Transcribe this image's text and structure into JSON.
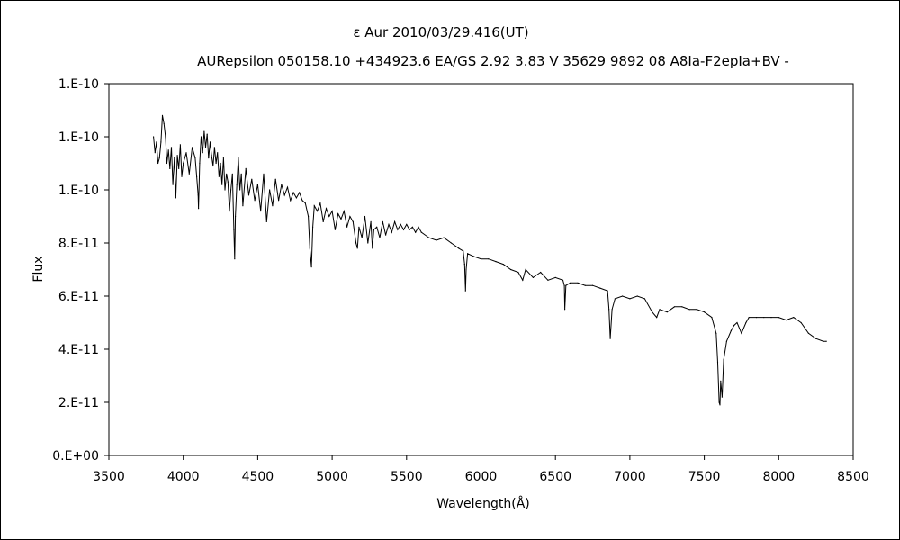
{
  "chart_data": {
    "type": "line",
    "title": "ε  Aur   2010/03/29.416(UT)",
    "subtitle": "AURepsilon 050158.10 +434923.6 EA/GS 2.92 3.83 V 35629 9892 08 A8Ⅰa-F2epⅠa+BV -",
    "xlabel": "Wavelength(Å)",
    "ylabel": "Flux",
    "xlim": [
      3500,
      8500
    ],
    "ylim": [
      0,
      1.4e-10
    ],
    "x_ticks": [
      3500,
      4000,
      4500,
      5000,
      5500,
      6000,
      6500,
      7000,
      7500,
      8000,
      8500
    ],
    "x_tick_labels": [
      "3500",
      "4000",
      "4500",
      "5000",
      "5500",
      "6000",
      "6500",
      "7000",
      "7500",
      "8000",
      "8500"
    ],
    "y_ticks": [
      0,
      2e-11,
      4e-11,
      6e-11,
      8e-11,
      1e-10,
      1.2e-10,
      1.4e-10
    ],
    "y_tick_labels": [
      "0.E+00",
      "2.E-11",
      "4.E-11",
      "6.E-11",
      "8.E-11",
      "1.E-10",
      "1.E-10",
      "1.E-10"
    ],
    "grid": false,
    "legend": "none",
    "line_color": "#000000",
    "series": [
      {
        "x": [
          3800,
          3810,
          3820,
          3830,
          3840,
          3850,
          3860,
          3870,
          3880,
          3890,
          3900,
          3910,
          3920,
          3930,
          3940,
          3950,
          3960,
          3970,
          3980,
          3990,
          4000,
          4020,
          4040,
          4060,
          4080,
          4090,
          4100,
          4102,
          4110,
          4120,
          4130,
          4140,
          4150,
          4160,
          4170,
          4180,
          4190,
          4200,
          4210,
          4220,
          4230,
          4240,
          4250,
          4260,
          4270,
          4280,
          4290,
          4300,
          4310,
          4320,
          4330,
          4340,
          4345,
          4350,
          4360,
          4370,
          4380,
          4390,
          4400,
          4420,
          4440,
          4460,
          4480,
          4500,
          4520,
          4540,
          4560,
          4580,
          4600,
          4620,
          4640,
          4660,
          4680,
          4700,
          4720,
          4740,
          4760,
          4780,
          4800,
          4820,
          4840,
          4850,
          4861,
          4870,
          4880,
          4900,
          4920,
          4940,
          4960,
          4980,
          5000,
          5020,
          5040,
          5060,
          5080,
          5100,
          5120,
          5140,
          5160,
          5170,
          5180,
          5200,
          5220,
          5240,
          5260,
          5270,
          5280,
          5300,
          5320,
          5340,
          5360,
          5380,
          5400,
          5420,
          5440,
          5460,
          5480,
          5500,
          5520,
          5540,
          5560,
          5580,
          5600,
          5650,
          5700,
          5750,
          5800,
          5850,
          5880,
          5890,
          5896,
          5900,
          5910,
          5950,
          6000,
          6050,
          6100,
          6150,
          6200,
          6250,
          6280,
          6300,
          6350,
          6400,
          6450,
          6500,
          6550,
          6560,
          6563,
          6570,
          6600,
          6650,
          6700,
          6750,
          6800,
          6850,
          6860,
          6868,
          6880,
          6900,
          6950,
          7000,
          7050,
          7100,
          7150,
          7180,
          7200,
          7250,
          7300,
          7350,
          7400,
          7450,
          7500,
          7550,
          7580,
          7590,
          7600,
          7605,
          7610,
          7620,
          7630,
          7650,
          7680,
          7700,
          7720,
          7750,
          7780,
          7800,
          7850,
          7900,
          7950,
          8000,
          8050,
          8100,
          8150,
          8200,
          8250,
          8300,
          8320
        ],
        "y": [
          1.2e-10,
          1.14e-10,
          1.18e-10,
          1.1e-10,
          1.12e-10,
          1.18e-10,
          1.28e-10,
          1.25e-10,
          1.2e-10,
          1.1e-10,
          1.15e-10,
          1.08e-10,
          1.16e-10,
          1.02e-10,
          1.12e-10,
          9.7e-11,
          1.13e-10,
          1.08e-10,
          1.17e-10,
          1.05e-10,
          1.1e-10,
          1.14e-10,
          1.06e-10,
          1.16e-10,
          1.12e-10,
          1.05e-10,
          9.8e-11,
          9.3e-11,
          1.1e-10,
          1.2e-10,
          1.14e-10,
          1.22e-10,
          1.16e-10,
          1.21e-10,
          1.12e-10,
          1.18e-10,
          1.13e-10,
          1.09e-10,
          1.16e-10,
          1.1e-10,
          1.14e-10,
          1.05e-10,
          1.1e-10,
          1.02e-10,
          1.12e-10,
          1e-10,
          1.06e-10,
          1.03e-10,
          9.2e-11,
          1e-10,
          1.06e-10,
          8.5e-11,
          7.4e-11,
          9e-11,
          1.02e-10,
          1.12e-10,
          1e-10,
          1.06e-10,
          9.4e-11,
          1.08e-10,
          9.8e-11,
          1.04e-10,
          9.6e-11,
          1.02e-10,
          9.2e-11,
          1.06e-10,
          8.8e-11,
          1e-10,
          9.4e-11,
          1.04e-10,
          9.6e-11,
          1.02e-10,
          9.8e-11,
          1.01e-10,
          9.6e-11,
          9.9e-11,
          9.7e-11,
          9.9e-11,
          9.6e-11,
          9.5e-11,
          9e-11,
          7.8e-11,
          7.1e-11,
          8.6e-11,
          9.4e-11,
          9.2e-11,
          9.5e-11,
          8.8e-11,
          9.3e-11,
          9e-11,
          9.2e-11,
          8.5e-11,
          9.1e-11,
          8.9e-11,
          9.2e-11,
          8.6e-11,
          9e-11,
          8.8e-11,
          8e-11,
          7.8e-11,
          8.6e-11,
          8.2e-11,
          9e-11,
          8e-11,
          8.8e-11,
          7.8e-11,
          8.5e-11,
          8.6e-11,
          8.2e-11,
          8.8e-11,
          8.3e-11,
          8.7e-11,
          8.4e-11,
          8.8e-11,
          8.5e-11,
          8.7e-11,
          8.5e-11,
          8.7e-11,
          8.5e-11,
          8.6e-11,
          8.4e-11,
          8.6e-11,
          8.4e-11,
          8.2e-11,
          8.1e-11,
          8.2e-11,
          8e-11,
          7.8e-11,
          7.7e-11,
          7.2e-11,
          6.2e-11,
          7e-11,
          7.6e-11,
          7.5e-11,
          7.4e-11,
          7.4e-11,
          7.3e-11,
          7.2e-11,
          7e-11,
          6.9e-11,
          6.6e-11,
          7e-11,
          6.7e-11,
          6.9e-11,
          6.6e-11,
          6.7e-11,
          6.6e-11,
          6.4e-11,
          5.5e-11,
          6.4e-11,
          6.5e-11,
          6.5e-11,
          6.4e-11,
          6.4e-11,
          6.3e-11,
          6.2e-11,
          5.5e-11,
          4.4e-11,
          5.5e-11,
          5.9e-11,
          6e-11,
          5.9e-11,
          6e-11,
          5.9e-11,
          5.4e-11,
          5.2e-11,
          5.5e-11,
          5.4e-11,
          5.6e-11,
          5.6e-11,
          5.5e-11,
          5.5e-11,
          5.4e-11,
          5.2e-11,
          4.6e-11,
          3.5e-11,
          2e-11,
          1.9e-11,
          2.8e-11,
          2.2e-11,
          3.6e-11,
          4.3e-11,
          4.7e-11,
          4.9e-11,
          5e-11,
          4.6e-11,
          5e-11,
          5.2e-11,
          5.2e-11,
          5.2e-11,
          5.2e-11,
          5.2e-11,
          5.1e-11,
          5.2e-11,
          5e-11,
          4.6e-11,
          4.4e-11,
          4.3e-11,
          4.3e-11
        ]
      }
    ]
  }
}
